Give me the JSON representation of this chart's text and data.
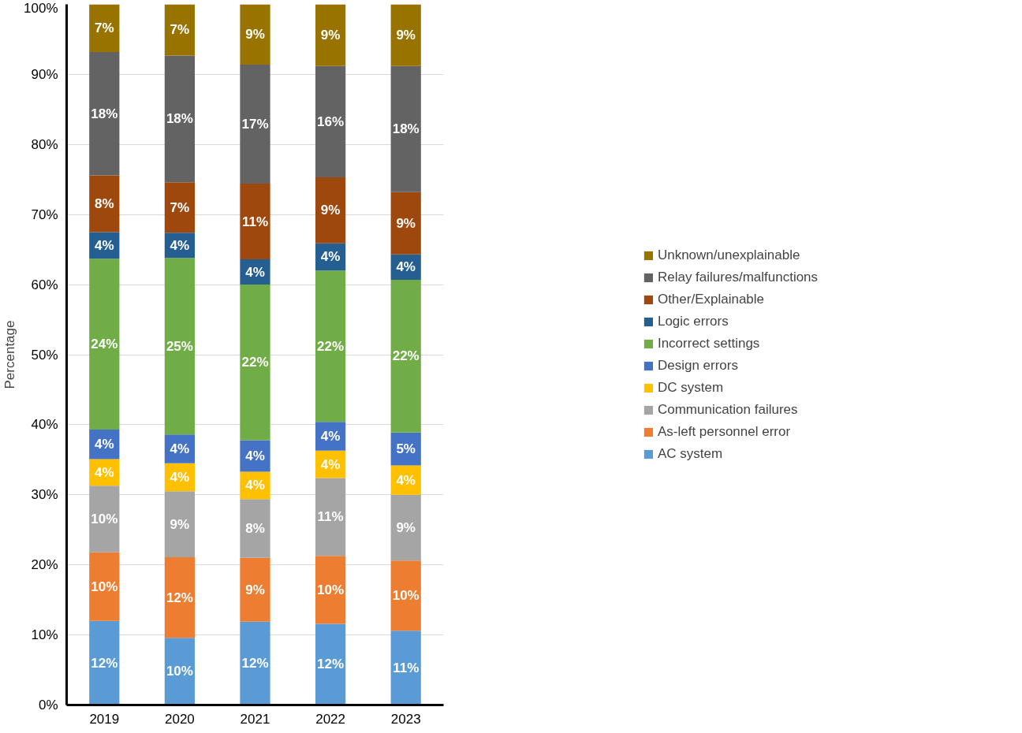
{
  "chart_data": {
    "type": "bar",
    "stacked": true,
    "ylabel": "Percentage",
    "categories": [
      "2019",
      "2020",
      "2021",
      "2022",
      "2023"
    ],
    "ylim": [
      0,
      100
    ],
    "yticks": [
      {
        "value": 0,
        "label": "0%"
      },
      {
        "value": 10,
        "label": "10%"
      },
      {
        "value": 20,
        "label": "20%"
      },
      {
        "value": 30,
        "label": "30%"
      },
      {
        "value": 40,
        "label": "40%"
      },
      {
        "value": 50,
        "label": "50%"
      },
      {
        "value": 60,
        "label": "60%"
      },
      {
        "value": 70,
        "label": "70%"
      },
      {
        "value": 80,
        "label": "80%"
      },
      {
        "value": 90,
        "label": "90%"
      },
      {
        "value": 100,
        "label": "100%"
      }
    ],
    "grid": "y",
    "legend": "right",
    "series": [
      {
        "name": "AC system",
        "color": "#5b9bd5",
        "values": [
          12,
          9.6,
          11.9,
          11.6,
          10.6
        ],
        "value_labels": [
          "12%",
          "10%",
          "12%",
          "12%",
          "11%"
        ]
      },
      {
        "name": "As-left personnel error",
        "color": "#ed7d31",
        "values": [
          9.8,
          11.5,
          9.1,
          9.7,
          10.0
        ],
        "value_labels": [
          "10%",
          "12%",
          "9%",
          "10%",
          "10%"
        ]
      },
      {
        "name": "Communication failures",
        "color": "#a5a5a5",
        "values": [
          9.5,
          9.4,
          8.4,
          11.1,
          9.4
        ],
        "value_labels": [
          "10%",
          "9%",
          "8%",
          "11%",
          "9%"
        ]
      },
      {
        "name": "DC system",
        "color": "#ffc000",
        "values": [
          3.8,
          4.0,
          3.9,
          3.9,
          4.2
        ],
        "value_labels": [
          "4%",
          "4%",
          "4%",
          "4%",
          "4%"
        ]
      },
      {
        "name": "Design errors",
        "color": "#4472c4",
        "values": [
          4.2,
          4.1,
          4.5,
          4.1,
          4.7
        ],
        "value_labels": [
          "4%",
          "4%",
          "4%",
          "4%",
          "5%"
        ]
      },
      {
        "name": "Incorrect settings",
        "color": "#70ad47",
        "values": [
          24.4,
          25.2,
          22.2,
          21.6,
          21.8
        ],
        "value_labels": [
          "24%",
          "25%",
          "22%",
          "22%",
          "22%"
        ]
      },
      {
        "name": "Logic errors",
        "color": "#255e91",
        "values": [
          3.8,
          3.6,
          3.6,
          3.9,
          3.6
        ],
        "value_labels": [
          "4%",
          "4%",
          "4%",
          "4%",
          "4%"
        ]
      },
      {
        "name": "Other/Explainable",
        "color": "#9e480e",
        "values": [
          8.1,
          7.2,
          10.8,
          9.4,
          8.9
        ],
        "value_labels": [
          "8%",
          "7%",
          "11%",
          "9%",
          "9%"
        ]
      },
      {
        "name": "Relay failures/malfunctions",
        "color": "#636363",
        "values": [
          17.6,
          18.1,
          17.0,
          15.9,
          18.0
        ],
        "value_labels": [
          "18%",
          "18%",
          "17%",
          "16%",
          "18%"
        ]
      },
      {
        "name": "Unknown/unexplainable",
        "color": "#997300",
        "values": [
          6.8,
          7.3,
          8.6,
          8.8,
          8.8
        ],
        "value_labels": [
          "7%",
          "7%",
          "9%",
          "9%",
          "9%"
        ]
      }
    ]
  }
}
